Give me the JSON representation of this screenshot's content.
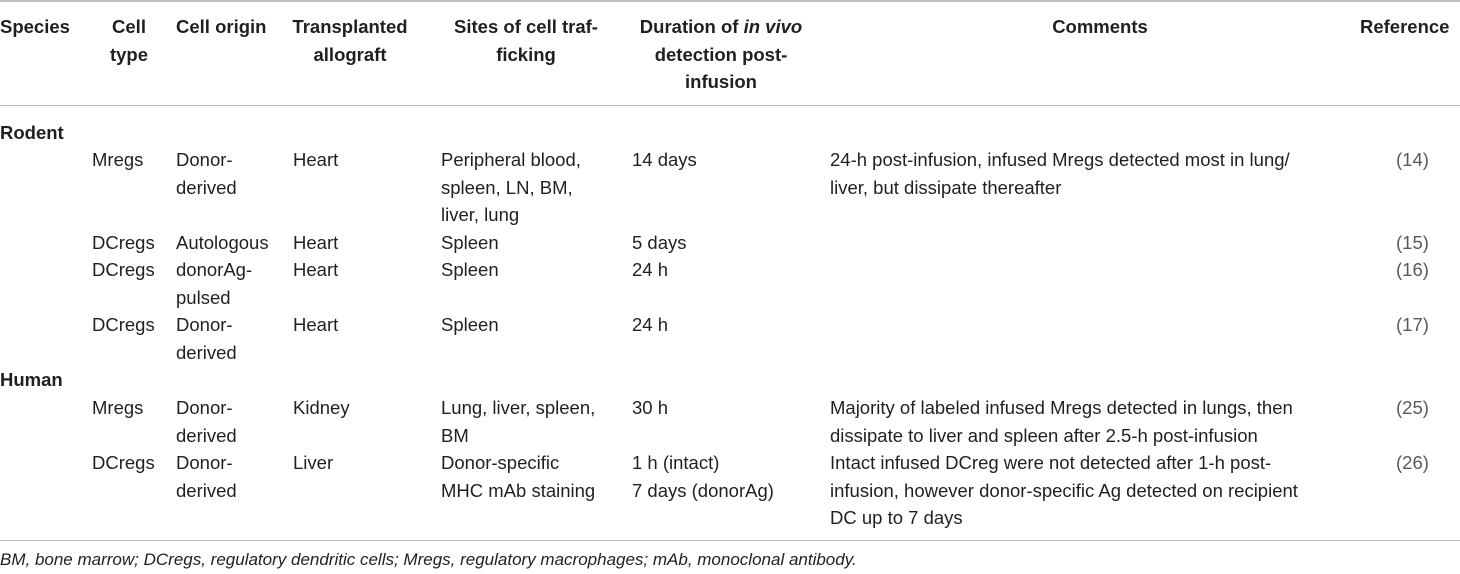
{
  "table": {
    "headers": {
      "species": "Species",
      "cell_type": [
        "Cell",
        "type"
      ],
      "cell_origin": "Cell origin",
      "allograft": [
        "Transplanted",
        "allograft"
      ],
      "trafficking": [
        "Sites of cell traf-",
        "ficking"
      ],
      "duration": {
        "line1_pre": "Duration of ",
        "line1_em": "in vivo",
        "line2": "detection post-",
        "line3": "infusion"
      },
      "comments": "Comments",
      "reference": "Reference"
    },
    "groups": {
      "rodent": "Rodent",
      "human": "Human"
    },
    "rows": [
      {
        "cell_type": "Mregs",
        "origin": [
          "Donor-",
          "derived"
        ],
        "graft": "Heart",
        "sites": [
          "Peripheral blood,",
          "spleen, LN, BM,",
          "liver, lung"
        ],
        "duration": [
          "14 days"
        ],
        "comments": [
          "24-h post-infusion, infused Mregs detected most in lung/",
          "liver, but dissipate thereafter"
        ],
        "reference": "(14)"
      },
      {
        "cell_type": "DCregs",
        "origin": [
          "Autologous"
        ],
        "graft": "Heart",
        "sites": [
          "Spleen"
        ],
        "duration": [
          "5 days"
        ],
        "comments": [],
        "reference": "(15)"
      },
      {
        "cell_type": "DCregs",
        "origin": [
          "donorAg-",
          "pulsed"
        ],
        "graft": "Heart",
        "sites": [
          "Spleen"
        ],
        "duration": [
          "24 h"
        ],
        "comments": [],
        "reference": "(16)"
      },
      {
        "cell_type": "DCregs",
        "origin": [
          "Donor-",
          "derived"
        ],
        "graft": "Heart",
        "sites": [
          "Spleen"
        ],
        "duration": [
          "24 h"
        ],
        "comments": [],
        "reference": "(17)"
      },
      {
        "cell_type": "Mregs",
        "origin": [
          "Donor-",
          "derived"
        ],
        "graft": "Kidney",
        "sites": [
          "Lung, liver, spleen,",
          "BM"
        ],
        "duration": [
          "30 h"
        ],
        "comments": [
          "Majority of labeled infused Mregs detected in lungs, then",
          "dissipate to liver and spleen after 2.5-h post-infusion"
        ],
        "reference": "(25)"
      },
      {
        "cell_type": "DCregs",
        "origin": [
          "Donor-",
          "derived"
        ],
        "graft": "Liver",
        "sites": [
          "Donor-specific",
          "MHC mAb staining"
        ],
        "duration": [
          "1 h (intact)",
          "7 days (donorAg)"
        ],
        "comments": [
          "Intact infused DCreg were not detected after 1-h post-",
          "infusion, however donor-specific Ag detected on recipient",
          "DC up to 7 days"
        ],
        "reference": "(26)"
      }
    ],
    "footnote": "BM, bone marrow; DCregs, regulatory dendritic cells; Mregs, regulatory macrophages; mAb, monoclonal antibody."
  }
}
